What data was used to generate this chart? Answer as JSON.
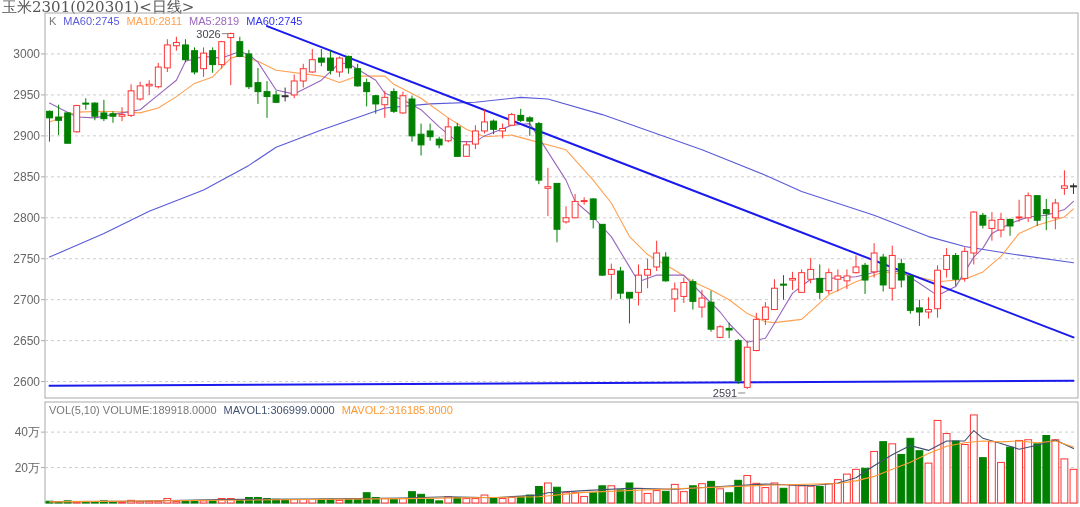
{
  "chart_data": [
    {
      "type": "candlestick",
      "title": "玉米2301(020301)<日线>",
      "legend_title": "K",
      "legend": "top left",
      "grid": "y",
      "ylim": [
        2580,
        3050
      ],
      "yticks": [
        2600,
        2650,
        2700,
        2750,
        2800,
        2850,
        2900,
        2950,
        3000
      ],
      "categories": [
        null,
        null,
        null,
        null,
        null,
        null,
        null,
        null,
        null,
        null,
        null,
        null,
        null,
        null,
        null,
        null,
        null,
        null,
        null,
        null,
        null,
        null,
        null,
        null,
        null,
        null,
        null,
        null,
        null,
        null,
        null,
        null,
        null,
        null,
        null,
        null,
        null,
        null,
        null,
        null,
        null,
        null,
        null,
        null,
        null,
        null,
        null,
        null,
        null,
        null,
        null,
        null,
        null,
        null,
        null,
        null,
        null,
        null,
        null,
        null,
        null,
        null,
        null,
        null,
        null,
        null,
        null,
        null,
        null,
        null,
        null,
        null,
        null,
        null,
        null,
        null,
        null,
        null,
        null,
        null,
        null,
        null,
        null,
        null,
        null,
        null,
        null,
        null,
        null,
        null,
        null,
        null,
        null,
        null,
        null,
        null,
        null,
        null,
        null,
        null,
        null,
        null,
        null,
        null,
        null,
        null,
        null,
        null,
        null,
        null,
        null,
        null,
        null,
        null
      ],
      "ohlc": [
        [
          2930,
          2931,
          2893,
          2922
        ],
        [
          2923,
          2938,
          2901,
          2919
        ],
        [
          2928,
          2929,
          2891,
          2891
        ],
        [
          2905,
          2938,
          2904,
          2937
        ],
        [
          2940,
          2946,
          2932,
          2939
        ],
        [
          2940,
          2941,
          2919,
          2924
        ],
        [
          2928,
          2944,
          2918,
          2921
        ],
        [
          2927,
          2930,
          2916,
          2924
        ],
        [
          2924,
          2935,
          2918,
          2926
        ],
        [
          2925,
          2963,
          2923,
          2955
        ],
        [
          2945,
          2966,
          2943,
          2961
        ],
        [
          2961,
          2968,
          2950,
          2963
        ],
        [
          2960,
          2989,
          2958,
          2984
        ],
        [
          2983,
          3018,
          2978,
          3011
        ],
        [
          3010,
          3021,
          3004,
          3014
        ],
        [
          3011,
          3018,
          2990,
          2993
        ],
        [
          3004,
          3008,
          2975,
          2978
        ],
        [
          2982,
          3008,
          2972,
          3001
        ],
        [
          3004,
          3008,
          2977,
          2987
        ],
        [
          2987,
          3016,
          2982,
          3015
        ],
        [
          3020,
          3026,
          2962,
          3025
        ],
        [
          3015,
          3021,
          2996,
          2997
        ],
        [
          3000,
          3005,
          2957,
          2960
        ],
        [
          2965,
          2983,
          2939,
          2954
        ],
        [
          2954,
          2967,
          2922,
          2948
        ],
        [
          2950,
          2955,
          2940,
          2941
        ],
        [
          2949,
          2959,
          2942,
          2949
        ],
        [
          2950,
          2975,
          2946,
          2967
        ],
        [
          2967,
          2988,
          2959,
          2982
        ],
        [
          2978,
          3006,
          2977,
          2993
        ],
        [
          2995,
          3006,
          2985,
          2990
        ],
        [
          2995,
          3004,
          2975,
          2980
        ],
        [
          2978,
          2997,
          2972,
          2995
        ],
        [
          2997,
          2998,
          2976,
          2983
        ],
        [
          2982,
          2988,
          2960,
          2961
        ],
        [
          2965,
          2970,
          2936,
          2954
        ],
        [
          2949,
          2950,
          2927,
          2939
        ],
        [
          2938,
          2955,
          2922,
          2947
        ],
        [
          2954,
          2958,
          2928,
          2930
        ],
        [
          2928,
          2954,
          2927,
          2949
        ],
        [
          2945,
          2949,
          2893,
          2900
        ],
        [
          2902,
          2915,
          2876,
          2889
        ],
        [
          2906,
          2915,
          2894,
          2899
        ],
        [
          2896,
          2899,
          2885,
          2889
        ],
        [
          2894,
          2922,
          2892,
          2911
        ],
        [
          2911,
          2916,
          2875,
          2875
        ],
        [
          2875,
          2893,
          2875,
          2889
        ],
        [
          2890,
          2913,
          2884,
          2906
        ],
        [
          2906,
          2932,
          2903,
          2917
        ],
        [
          2918,
          2920,
          2902,
          2908
        ],
        [
          2906,
          2915,
          2897,
          2909
        ],
        [
          2913,
          2928,
          2912,
          2926
        ],
        [
          2925,
          2933,
          2917,
          2919
        ],
        [
          2922,
          2924,
          2900,
          2918
        ],
        [
          2915,
          2917,
          2841,
          2846
        ],
        [
          2836,
          2861,
          2802,
          2838
        ],
        [
          2842,
          2842,
          2770,
          2786
        ],
        [
          2795,
          2814,
          2793,
          2800
        ],
        [
          2800,
          2829,
          2800,
          2820
        ],
        [
          2820,
          2825,
          2816,
          2821
        ],
        [
          2823,
          2824,
          2787,
          2798
        ],
        [
          2792,
          2792,
          2729,
          2730
        ],
        [
          2731,
          2744,
          2701,
          2737
        ],
        [
          2735,
          2740,
          2701,
          2708
        ],
        [
          2709,
          2709,
          2671,
          2702
        ],
        [
          2709,
          2743,
          2693,
          2730
        ],
        [
          2730,
          2750,
          2714,
          2737
        ],
        [
          2740,
          2772,
          2735,
          2757
        ],
        [
          2752,
          2758,
          2722,
          2723
        ],
        [
          2701,
          2721,
          2685,
          2713
        ],
        [
          2704,
          2727,
          2696,
          2721
        ],
        [
          2722,
          2725,
          2688,
          2698
        ],
        [
          2691,
          2712,
          2678,
          2702
        ],
        [
          2697,
          2711,
          2661,
          2664
        ],
        [
          2654,
          2669,
          2653,
          2667
        ],
        [
          2665,
          2672,
          2653,
          2663
        ],
        [
          2650,
          2652,
          2597,
          2601
        ],
        [
          2593,
          2650,
          2591,
          2642
        ],
        [
          2638,
          2684,
          2637,
          2676
        ],
        [
          2676,
          2697,
          2669,
          2691
        ],
        [
          2688,
          2725,
          2688,
          2714
        ],
        [
          2719,
          2730,
          2700,
          2718
        ],
        [
          2724,
          2734,
          2712,
          2726
        ],
        [
          2709,
          2737,
          2709,
          2733
        ],
        [
          2725,
          2751,
          2720,
          2737
        ],
        [
          2726,
          2743,
          2701,
          2709
        ],
        [
          2711,
          2738,
          2707,
          2733
        ],
        [
          2725,
          2737,
          2710,
          2729
        ],
        [
          2723,
          2737,
          2713,
          2729
        ],
        [
          2733,
          2754,
          2732,
          2740
        ],
        [
          2742,
          2745,
          2707,
          2724
        ],
        [
          2734,
          2769,
          2727,
          2757
        ],
        [
          2752,
          2756,
          2710,
          2718
        ],
        [
          2714,
          2766,
          2699,
          2754
        ],
        [
          2744,
          2750,
          2715,
          2724
        ],
        [
          2729,
          2730,
          2683,
          2687
        ],
        [
          2690,
          2700,
          2668,
          2685
        ],
        [
          2685,
          2703,
          2677,
          2688
        ],
        [
          2689,
          2742,
          2678,
          2736
        ],
        [
          2737,
          2763,
          2727,
          2754
        ],
        [
          2754,
          2757,
          2717,
          2725
        ],
        [
          2726,
          2764,
          2722,
          2759
        ],
        [
          2757,
          2808,
          2743,
          2807
        ],
        [
          2803,
          2806,
          2787,
          2791
        ],
        [
          2787,
          2807,
          2772,
          2797
        ],
        [
          2785,
          2806,
          2776,
          2798
        ],
        [
          2798,
          2799,
          2778,
          2790
        ],
        [
          2800,
          2822,
          2795,
          2801
        ],
        [
          2800,
          2831,
          2795,
          2827
        ],
        [
          2827,
          2827,
          2790,
          2797
        ],
        [
          2810,
          2823,
          2785,
          2805
        ],
        [
          2800,
          2823,
          2786,
          2818
        ],
        [
          2836,
          2858,
          2828,
          2839
        ],
        [
          2839,
          2842,
          2829,
          2839
        ]
      ],
      "colors": [
        "#008000",
        "#008000",
        "#008000",
        "#ff3333",
        "#008000",
        "#008000",
        "#008000",
        "#008000",
        "#ff3333",
        "#ff3333",
        "#ff3333",
        "#ff3333",
        "#ff3333",
        "#ff3333",
        "#ff3333",
        "#008000",
        "#008000",
        "#ff3333",
        "#008000",
        "#ff3333",
        "#ff3333",
        "#008000",
        "#008000",
        "#008000",
        "#008000",
        "#008000",
        "#333333",
        "#ff3333",
        "#ff3333",
        "#ff3333",
        "#008000",
        "#008000",
        "#ff3333",
        "#008000",
        "#008000",
        "#008000",
        "#008000",
        "#ff3333",
        "#008000",
        "#ff3333",
        "#008000",
        "#008000",
        "#008000",
        "#008000",
        "#ff3333",
        "#008000",
        "#ff3333",
        "#ff3333",
        "#ff3333",
        "#008000",
        "#ff3333",
        "#ff3333",
        "#008000",
        "#008000",
        "#008000",
        "#ff3333",
        "#008000",
        "#ff3333",
        "#ff3333",
        "#ff3333",
        "#008000",
        "#008000",
        "#ff3333",
        "#008000",
        "#008000",
        "#ff3333",
        "#ff3333",
        "#ff3333",
        "#008000",
        "#ff3333",
        "#ff3333",
        "#008000",
        "#ff3333",
        "#008000",
        "#ff3333",
        "#008000",
        "#008000",
        "#ff3333",
        "#ff3333",
        "#ff3333",
        "#ff3333",
        "#008000",
        "#ff3333",
        "#ff3333",
        "#ff3333",
        "#008000",
        "#ff3333",
        "#ff3333",
        "#ff3333",
        "#ff3333",
        "#008000",
        "#ff3333",
        "#008000",
        "#ff3333",
        "#008000",
        "#008000",
        "#008000",
        "#ff3333",
        "#ff3333",
        "#ff3333",
        "#008000",
        "#ff3333",
        "#ff3333",
        "#008000",
        "#ff3333",
        "#ff3333",
        "#008000",
        "#ff3333",
        "#ff3333",
        "#008000",
        "#008000",
        "#ff3333",
        "#ff3333",
        "#333333"
      ],
      "series": [
        {
          "name": "MA60:2745",
          "color": "#5a5ad8",
          "type": "line",
          "values": [
            2752,
            null,
            null,
            null,
            null,
            null,
            2781,
            null,
            null,
            null,
            null,
            2808,
            null,
            null,
            null,
            null,
            null,
            2834,
            null,
            null,
            null,
            null,
            2864,
            null,
            null,
            2886,
            null,
            null,
            null,
            null,
            2907,
            null,
            null,
            null,
            null,
            null,
            null,
            2934,
            null,
            null,
            null,
            null,
            2939,
            null,
            null,
            null,
            null,
            2941,
            null,
            null,
            null,
            null,
            2947,
            null,
            null,
            2945,
            null,
            null,
            null,
            null,
            null,
            2926,
            null,
            null,
            null,
            null,
            null,
            null,
            null,
            null,
            null,
            null,
            2883,
            null,
            null,
            null,
            null,
            null,
            null,
            2852,
            null,
            null,
            null,
            2832,
            null,
            null,
            null,
            null,
            null,
            null,
            null,
            2803,
            null,
            null,
            null,
            null,
            null,
            2777,
            null,
            null,
            null,
            2765,
            null,
            null,
            null,
            null,
            2756,
            null,
            null,
            null,
            null,
            null,
            null,
            2745
          ]
        },
        {
          "name": "MA10:2811",
          "color": "#ffa050",
          "type": "line",
          "values": [
            2917,
            null,
            null,
            2929,
            null,
            null,
            2930,
            null,
            null,
            null,
            2928,
            null,
            2934,
            null,
            2948,
            null,
            2964,
            null,
            2972,
            null,
            2995,
            2998,
            null,
            2991,
            null,
            2980,
            null,
            null,
            null,
            null,
            2973,
            null,
            2965,
            null,
            2973,
            null,
            null,
            2973,
            2963,
            null,
            null,
            2946,
            null,
            null,
            2922,
            null,
            2908,
            null,
            2899,
            null,
            null,
            2901,
            null,
            null,
            null,
            null,
            null,
            2883,
            null,
            null,
            2846,
            null,
            2818,
            null,
            2777,
            null,
            2755,
            null,
            null,
            2736,
            null,
            2722,
            null,
            2712,
            null,
            2700,
            null,
            2683,
            null,
            2673,
            2672,
            null,
            null,
            2676,
            null,
            null,
            2706,
            null,
            null,
            2722,
            null,
            null,
            2734,
            null,
            null,
            2730,
            null,
            null,
            2722,
            null,
            null,
            2725,
            null,
            2734,
            null,
            2753,
            null,
            2781,
            null,
            2791,
            null,
            null,
            2801,
            2811
          ]
        },
        {
          "name": "MA5:2819",
          "color": "#9966bb",
          "type": "line",
          "values": [
            2940,
            null,
            null,
            2923,
            null,
            2922,
            null,
            null,
            2928,
            null,
            2932,
            null,
            2950,
            null,
            2968,
            2991,
            null,
            2997,
            null,
            2995,
            null,
            3003,
            2999,
            2990,
            null,
            2956,
            null,
            2951,
            null,
            null,
            2968,
            null,
            2989,
            2988,
            null,
            null,
            2968,
            2952,
            null,
            2944,
            null,
            2932,
            null,
            2911,
            null,
            2893,
            null,
            2893,
            2900,
            null,
            null,
            2913,
            null,
            2915,
            null,
            null,
            null,
            2846,
            2820,
            null,
            2801,
            null,
            2777,
            null,
            2740,
            2722,
            null,
            2730,
            null,
            null,
            2730,
            2718,
            null,
            null,
            2685,
            2671,
            null,
            2648,
            null,
            2653,
            2671,
            null,
            2708,
            null,
            2725,
            null,
            2726,
            null,
            null,
            2728,
            null,
            null,
            2736,
            null,
            2734,
            null,
            2720,
            null,
            2705,
            null,
            2716,
            null,
            2752,
            2763,
            2781,
            null,
            2793,
            null,
            2801,
            null,
            2803,
            null,
            2810,
            2820
          ]
        },
        {
          "color": "#1a1aee",
          "type": "line",
          "values": [
            null,
            null,
            null,
            null,
            null,
            null,
            null,
            null,
            null,
            null,
            null,
            null,
            null,
            null,
            null,
            null,
            null,
            null,
            null,
            null,
            null,
            null,
            null,
            null,
            3034,
            null,
            null,
            null,
            null,
            null,
            null,
            null,
            null,
            null,
            null,
            null,
            null,
            null,
            null,
            null,
            null,
            null,
            null,
            null,
            null,
            null,
            null,
            null,
            null,
            null,
            null,
            null,
            null,
            null,
            null,
            null,
            null,
            null,
            null,
            null,
            null,
            null,
            null,
            null,
            null,
            null,
            null,
            null,
            null,
            null,
            null,
            null,
            null,
            null,
            null,
            null,
            null,
            null,
            null,
            null,
            null,
            null,
            null,
            null,
            null,
            null,
            null,
            null,
            null,
            null,
            null,
            null,
            null,
            null,
            null,
            null,
            null,
            null,
            null,
            null,
            null,
            null,
            null,
            null,
            null,
            null,
            null,
            null,
            null,
            null,
            null,
            null,
            null,
            2654
          ]
        },
        {
          "color": "#1a1aee",
          "type": "line",
          "values": [
            2595,
            null,
            null,
            null,
            null,
            null,
            null,
            null,
            null,
            null,
            null,
            null,
            null,
            null,
            null,
            null,
            null,
            null,
            null,
            null,
            null,
            null,
            null,
            null,
            null,
            null,
            null,
            null,
            null,
            null,
            null,
            null,
            null,
            null,
            null,
            null,
            null,
            null,
            null,
            null,
            null,
            null,
            null,
            null,
            null,
            null,
            null,
            null,
            null,
            null,
            null,
            null,
            null,
            null,
            null,
            2598,
            null,
            null,
            null,
            null,
            null,
            null,
            null,
            null,
            null,
            null,
            null,
            null,
            null,
            null,
            null,
            null,
            null,
            null,
            null,
            null,
            null,
            null,
            null,
            null,
            null,
            null,
            null,
            null,
            null,
            null,
            null,
            null,
            null,
            null,
            null,
            null,
            null,
            null,
            null,
            null,
            null,
            null,
            null,
            null,
            null,
            null,
            null,
            null,
            null,
            null,
            null,
            null,
            null,
            null,
            null,
            null,
            null,
            2601
          ]
        }
      ],
      "annotations": [
        "MA60:2745",
        "3026",
        "2591"
      ]
    },
    {
      "type": "bar",
      "legend_title": "VOL(5,10) VOLUME:189918.0000",
      "legend": "top left",
      "grid": "y",
      "ylim": [
        0,
        57
      ],
      "yticks": [
        {
          "value": 20,
          "label": "20万"
        },
        {
          "value": 40,
          "label": "40万"
        }
      ],
      "categories": [
        null,
        null,
        null,
        null,
        null,
        null,
        null,
        null,
        null,
        null,
        null,
        null,
        null,
        null,
        null,
        null,
        null,
        null,
        null,
        null,
        null,
        null,
        null,
        null,
        null,
        null,
        null,
        null,
        null,
        null,
        null,
        null,
        null,
        null,
        null,
        null,
        null,
        null,
        null,
        null,
        null,
        null,
        null,
        null,
        null,
        null,
        null,
        null,
        null,
        null,
        null,
        null,
        null,
        null,
        null,
        null,
        null,
        null,
        null,
        null,
        null,
        null,
        null,
        null,
        null,
        null,
        null,
        null,
        null,
        null,
        null,
        null,
        null,
        null,
        null,
        null,
        null,
        null,
        null,
        null,
        null,
        null,
        null,
        null,
        null,
        null,
        null,
        null,
        null,
        null,
        null,
        null,
        null,
        null,
        null,
        null,
        null,
        null,
        null,
        null,
        null,
        null,
        null,
        null,
        null,
        null,
        null,
        null,
        null,
        null,
        null,
        null,
        null,
        null
      ],
      "values": [
        1.0,
        0.6,
        1.2,
        0.6,
        0.6,
        0.6,
        1.2,
        0.6,
        0.6,
        1.5,
        0.8,
        0.8,
        0.8,
        2.5,
        0.8,
        1.2,
        1.2,
        1.2,
        1.2,
        2.5,
        2.5,
        2.0,
        3.1,
        3.1,
        2.5,
        2.1,
        2.0,
        2.0,
        2.0,
        2.0,
        2.1,
        2.1,
        1.5,
        2.1,
        2.1,
        5.8,
        3.1,
        2.5,
        2.1,
        2.5,
        6.4,
        4.9,
        2.1,
        1.2,
        3.5,
        3.1,
        2.5,
        2.5,
        4.5,
        3.1,
        2.5,
        3.1,
        3.5,
        4.5,
        9.3,
        11.3,
        8.9,
        5.8,
        5.8,
        3.7,
        5.8,
        9.7,
        9.7,
        7.4,
        11.3,
        8.3,
        5.4,
        7,
        6.6,
        10.5,
        6.4,
        9.7,
        10.9,
        12.2,
        8,
        5.8,
        12.8,
        15.5,
        11.1,
        8.7,
        11.3,
        8.3,
        10.1,
        9.7,
        9.5,
        9.3,
        10.9,
        13.2,
        16.3,
        19,
        19.6,
        29.1,
        34.6,
        33.4,
        27.4,
        36.5,
        29.5,
        22.5,
        46.6,
        39.2,
        35,
        33,
        49.7,
        25.6,
        34.6,
        22.9,
        31.5,
        35.3,
        35.7,
        33.4,
        38.1,
        35.7,
        24.9,
        19
      ],
      "colors": [
        "#008000",
        "#008000",
        "#008000",
        "#ff3333",
        "#008000",
        "#008000",
        "#008000",
        "#008000",
        "#ff3333",
        "#ff3333",
        "#ff3333",
        "#ff3333",
        "#ff3333",
        "#ff3333",
        "#ff3333",
        "#008000",
        "#008000",
        "#ff3333",
        "#008000",
        "#ff3333",
        "#ff3333",
        "#008000",
        "#008000",
        "#008000",
        "#008000",
        "#008000",
        "#008000",
        "#ff3333",
        "#ff3333",
        "#ff3333",
        "#008000",
        "#008000",
        "#ff3333",
        "#008000",
        "#008000",
        "#008000",
        "#008000",
        "#ff3333",
        "#008000",
        "#ff3333",
        "#008000",
        "#008000",
        "#008000",
        "#008000",
        "#ff3333",
        "#008000",
        "#ff3333",
        "#ff3333",
        "#ff3333",
        "#008000",
        "#ff3333",
        "#ff3333",
        "#008000",
        "#008000",
        "#008000",
        "#ff3333",
        "#008000",
        "#ff3333",
        "#ff3333",
        "#ff3333",
        "#008000",
        "#008000",
        "#ff3333",
        "#008000",
        "#008000",
        "#ff3333",
        "#ff3333",
        "#ff3333",
        "#008000",
        "#ff3333",
        "#ff3333",
        "#008000",
        "#ff3333",
        "#008000",
        "#ff3333",
        "#008000",
        "#008000",
        "#ff3333",
        "#ff3333",
        "#ff3333",
        "#ff3333",
        "#008000",
        "#ff3333",
        "#ff3333",
        "#ff3333",
        "#008000",
        "#ff3333",
        "#ff3333",
        "#ff3333",
        "#ff3333",
        "#008000",
        "#ff3333",
        "#008000",
        "#ff3333",
        "#008000",
        "#008000",
        "#008000",
        "#ff3333",
        "#ff3333",
        "#ff3333",
        "#008000",
        "#ff3333",
        "#ff3333",
        "#008000",
        "#ff3333",
        "#ff3333",
        "#008000",
        "#ff3333",
        "#ff3333",
        "#008000",
        "#008000",
        "#ff3333",
        "#ff3333",
        "#ff3333"
      ],
      "series": [
        {
          "name": "MAVOL1:306999.0000",
          "color": "#405070",
          "type": "line",
          "values": [
            0.8,
            null,
            null,
            null,
            null,
            null,
            null,
            null,
            null,
            1,
            null,
            null,
            null,
            null,
            null,
            null,
            null,
            null,
            null,
            2,
            null,
            null,
            null,
            null,
            null,
            null,
            null,
            null,
            null,
            2.2,
            null,
            null,
            null,
            null,
            null,
            null,
            null,
            null,
            null,
            2.8,
            null,
            null,
            null,
            null,
            3.5,
            null,
            null,
            null,
            null,
            3,
            null,
            null,
            null,
            null,
            4.5,
            5.8,
            null,
            null,
            null,
            7,
            null,
            null,
            null,
            null,
            8.3,
            null,
            null,
            null,
            null,
            7.8,
            null,
            null,
            null,
            null,
            9.3,
            null,
            null,
            null,
            null,
            10.7,
            null,
            null,
            null,
            null,
            9.7,
            null,
            null,
            11.3,
            null,
            14.2,
            null,
            21,
            null,
            27.2,
            null,
            32.4,
            null,
            29.7,
            null,
            35,
            null,
            35,
            40.8,
            36.5,
            null,
            33.6,
            null,
            30.3,
            null,
            32.6,
            null,
            35.5,
            null,
            30.7
          ]
        },
        {
          "name": "MAVOL2:316185.8000",
          "color": "#ff9933",
          "type": "line",
          "values": [
            0.6,
            null,
            null,
            null,
            null,
            null,
            null,
            null,
            null,
            null,
            null,
            null,
            null,
            null,
            null,
            null,
            null,
            null,
            null,
            1.5,
            null,
            null,
            null,
            null,
            null,
            null,
            null,
            null,
            null,
            null,
            null,
            null,
            null,
            null,
            null,
            null,
            null,
            null,
            null,
            2.5,
            null,
            null,
            null,
            null,
            null,
            null,
            null,
            null,
            null,
            null,
            null,
            null,
            null,
            null,
            3.5,
            null,
            null,
            null,
            null,
            6,
            null,
            null,
            null,
            null,
            null,
            null,
            null,
            null,
            null,
            8,
            null,
            null,
            null,
            null,
            null,
            null,
            null,
            null,
            null,
            10,
            null,
            null,
            null,
            null,
            null,
            null,
            null,
            11,
            null,
            12.5,
            null,
            15,
            null,
            19,
            null,
            23,
            null,
            28,
            null,
            32,
            null,
            34,
            null,
            35,
            null,
            34.5,
            null,
            35,
            null,
            34,
            null,
            35,
            null,
            31.6
          ]
        }
      ]
    }
  ]
}
